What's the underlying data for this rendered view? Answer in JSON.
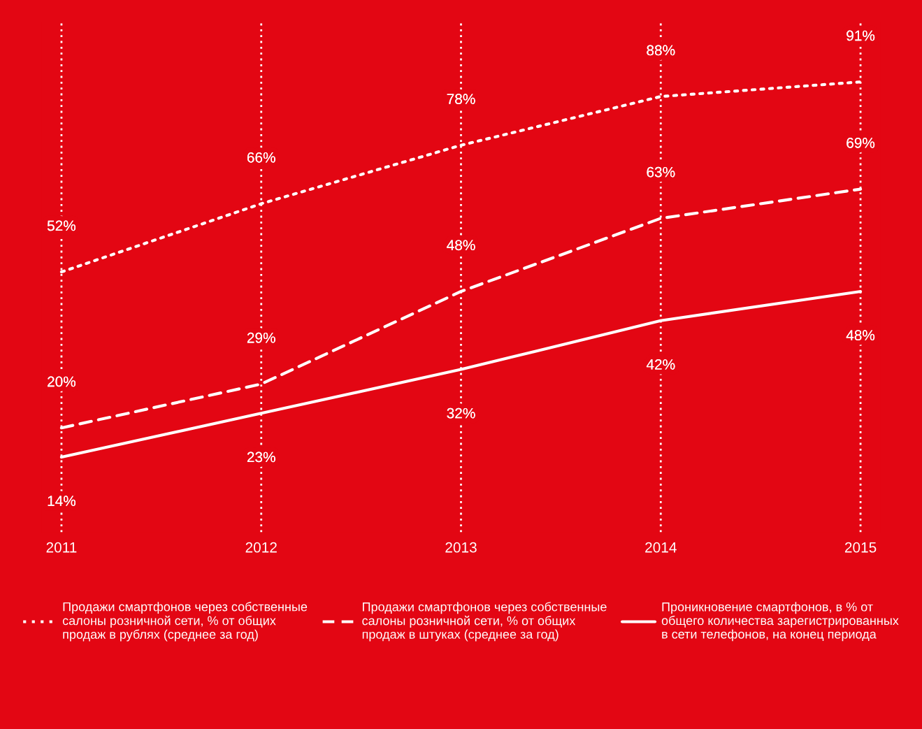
{
  "chart_data": {
    "type": "line",
    "categories": [
      "2011",
      "2012",
      "2013",
      "2014",
      "2015"
    ],
    "series": [
      {
        "name": "Продажи смартфонов через собственные салоны розничной сети, % от общих продаж в рублях (среднее за год)",
        "color": "#ffffff",
        "line_style": "dotted",
        "values": [
          52,
          66,
          78,
          88,
          91
        ],
        "value_labels": [
          "52%",
          "66%",
          "78%",
          "88%",
          "91%"
        ]
      },
      {
        "name": "Продажи смартфонов через собственные салоны розничной сети, % от общих продаж в штуках (среднее за год)",
        "color": "#ffffff",
        "line_style": "dashed",
        "values": [
          20,
          29,
          48,
          63,
          69
        ],
        "value_labels": [
          "20%",
          "29%",
          "48%",
          "63%",
          "69%"
        ]
      },
      {
        "name": "Проникновение смартфонов, в % от общего количества зарегистрированных в сети телефонов, на конец периода",
        "color": "#ffffff",
        "line_style": "solid",
        "values": [
          14,
          23,
          32,
          42,
          48
        ],
        "value_labels": [
          "14%",
          "23%",
          "32%",
          "42%",
          "48%"
        ]
      }
    ],
    "grid": "x",
    "legend": "bottom",
    "marker": "none"
  }
}
